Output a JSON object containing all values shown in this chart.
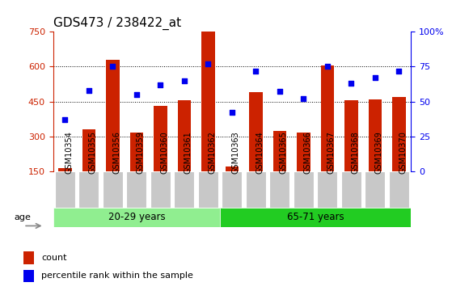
{
  "title": "GDS473 / 238422_at",
  "samples": [
    "GSM10354",
    "GSM10355",
    "GSM10356",
    "GSM10359",
    "GSM10360",
    "GSM10361",
    "GSM10362",
    "GSM10363",
    "GSM10364",
    "GSM10365",
    "GSM10366",
    "GSM10367",
    "GSM10368",
    "GSM10369",
    "GSM10370"
  ],
  "counts": [
    165,
    330,
    630,
    315,
    430,
    455,
    750,
    170,
    490,
    325,
    315,
    605,
    455,
    460,
    470
  ],
  "percentiles": [
    37,
    58,
    75,
    55,
    62,
    65,
    77,
    42,
    72,
    57,
    52,
    75,
    63,
    67,
    72
  ],
  "groups": [
    {
      "label": "20-29 years",
      "start": 0,
      "end": 7,
      "color": "#90EE90"
    },
    {
      "label": "65-71 years",
      "start": 7,
      "end": 15,
      "color": "#22CC22"
    }
  ],
  "bar_color": "#CC2200",
  "dot_color": "#0000EE",
  "bar_base": 150,
  "ylim_left": [
    150,
    750
  ],
  "ylim_right": [
    0,
    100
  ],
  "yticks_left": [
    150,
    300,
    450,
    600,
    750
  ],
  "yticks_right": [
    0,
    25,
    50,
    75,
    100
  ],
  "ytick_labels_left": [
    "150",
    "300",
    "450",
    "600",
    "750"
  ],
  "ytick_labels_right": [
    "0",
    "25",
    "50",
    "75",
    "100%"
  ],
  "grid_values": [
    300,
    450,
    600
  ],
  "age_label": "age",
  "legend_count": "count",
  "legend_percentile": "percentile rank within the sample",
  "title_fontsize": 11,
  "tick_fontsize": 8,
  "label_fontsize": 8,
  "group_fontsize": 8.5
}
